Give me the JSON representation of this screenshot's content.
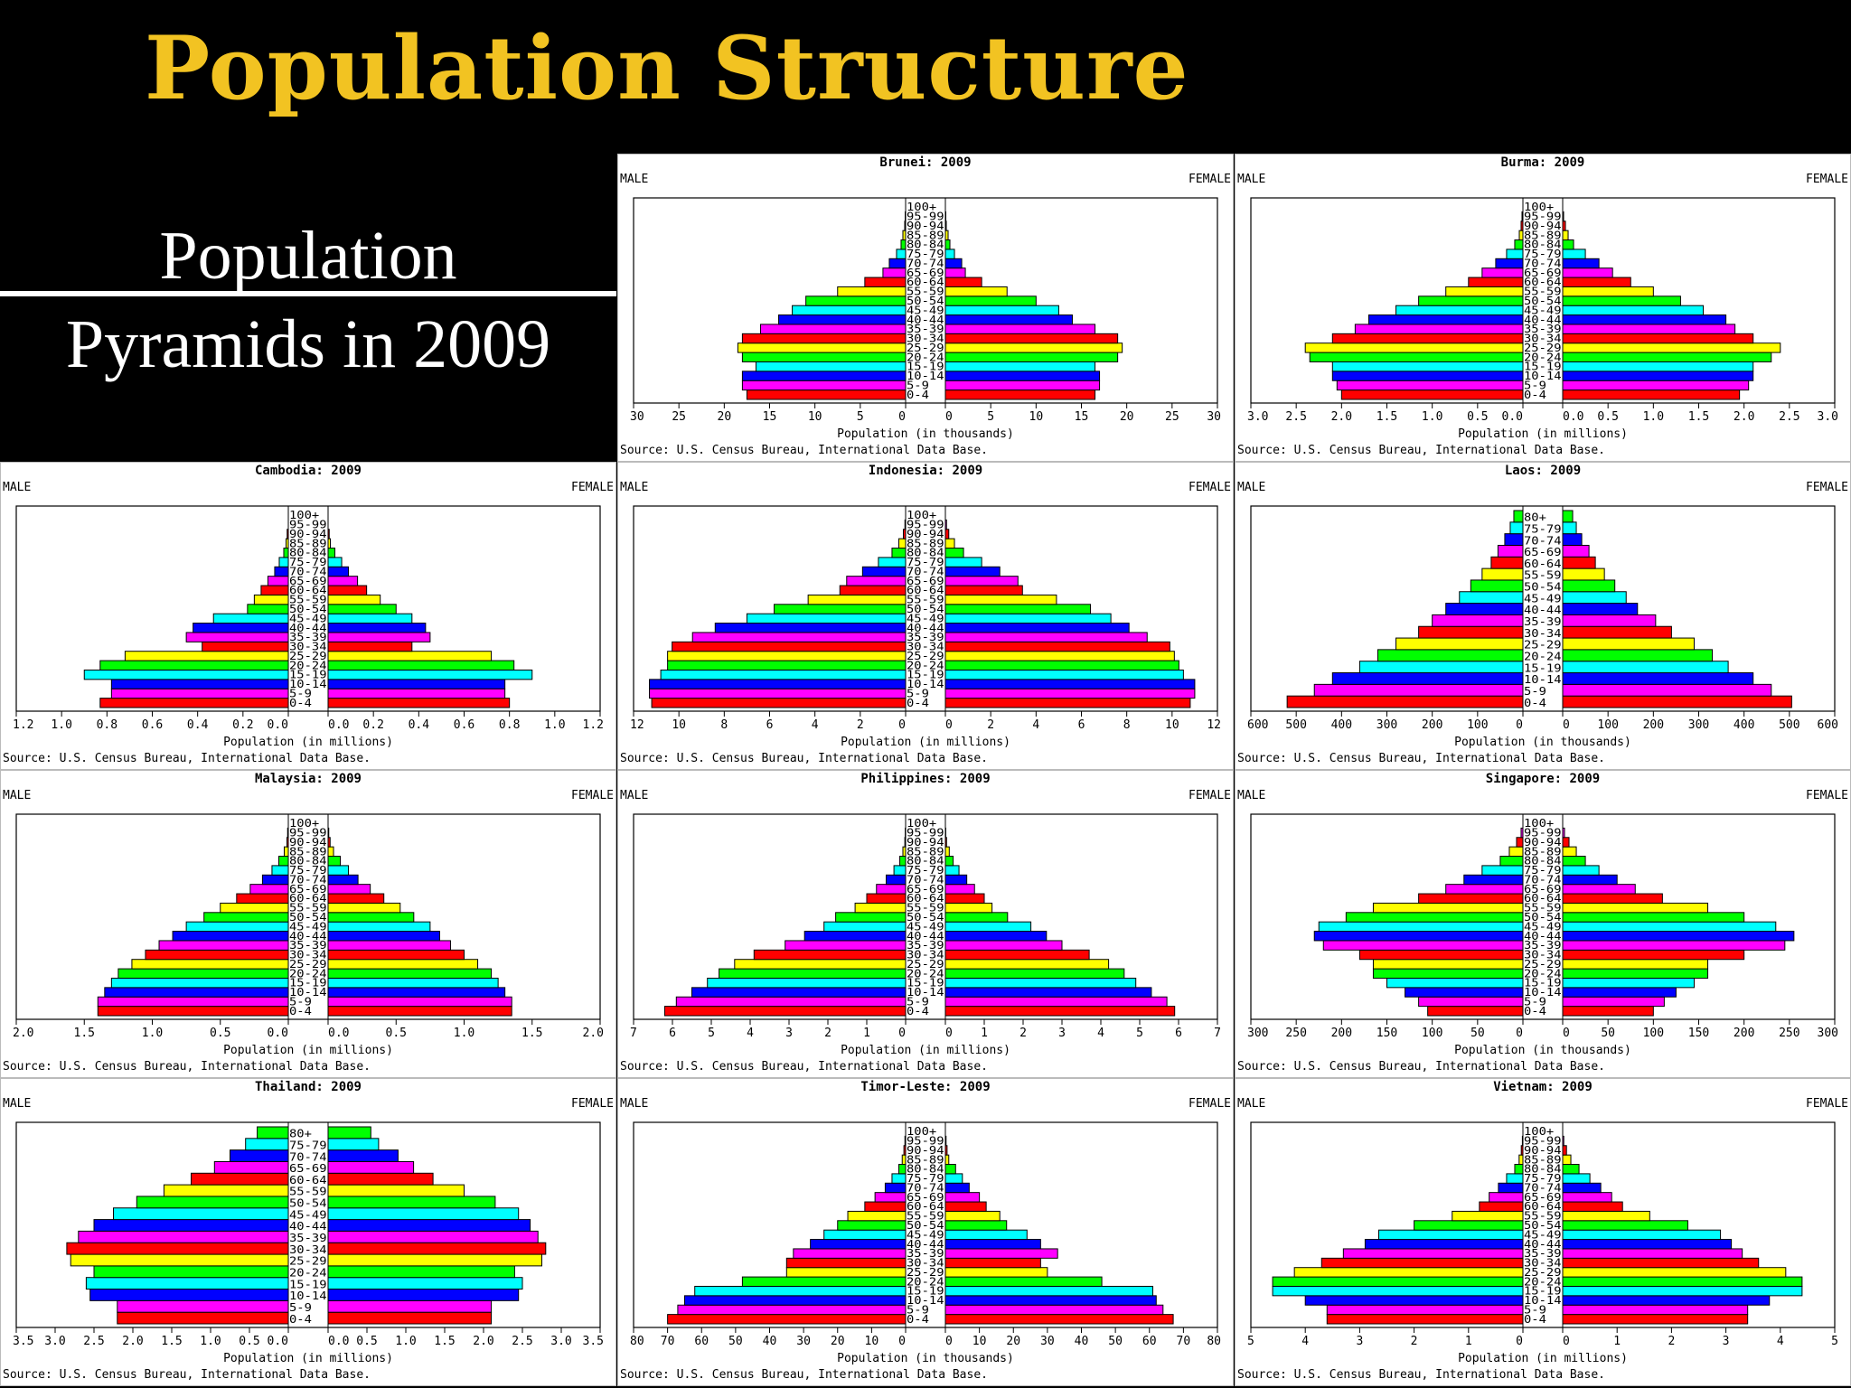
{
  "header": {
    "title": "Population Structure",
    "subtitle_line1": "Population",
    "subtitle_line2": "Pyramids in 2009"
  },
  "common": {
    "male_label": "MALE",
    "female_label": "FEMALE",
    "source": "Source: U.S. Census Bureau, International Data Base."
  },
  "colors": [
    "#ff0000",
    "#ff00ff",
    "#0000ff",
    "#00ffff",
    "#00ff00",
    "#ffff00"
  ],
  "chart_data": [
    {
      "type": "bar",
      "title": "Brunei: 2009",
      "xlabel": "Population (in thousands)",
      "xmax": 30,
      "ticks": [
        "30",
        "25",
        "20",
        "15",
        "10",
        "5",
        "0"
      ],
      "age_groups": [
        "0-4",
        "5-9",
        "10-14",
        "15-19",
        "20-24",
        "25-29",
        "30-34",
        "35-39",
        "40-44",
        "45-49",
        "50-54",
        "55-59",
        "60-64",
        "65-69",
        "70-74",
        "75-79",
        "80-84",
        "85-89",
        "90-94",
        "95-99",
        "100+"
      ],
      "male": [
        17.5,
        18,
        18,
        16.5,
        18,
        18.5,
        18,
        16,
        14,
        12.5,
        11,
        7.5,
        4.5,
        2.5,
        1.8,
        1.0,
        0.5,
        0.3,
        0.1,
        0.05,
        0
      ],
      "female": [
        16.5,
        17,
        17,
        16.5,
        19,
        19.5,
        19,
        16.5,
        14,
        12.5,
        10,
        6.8,
        4.0,
        2.2,
        1.8,
        1.0,
        0.5,
        0.3,
        0.1,
        0.05,
        0
      ]
    },
    {
      "type": "bar",
      "title": "Burma: 2009",
      "xlabel": "Population (in millions)",
      "xmax": 3.0,
      "ticks": [
        "3.0",
        "2.5",
        "2.0",
        "1.5",
        "1.0",
        "0.5",
        "0.0"
      ],
      "age_groups": [
        "0-4",
        "5-9",
        "10-14",
        "15-19",
        "20-24",
        "25-29",
        "30-34",
        "35-39",
        "40-44",
        "45-49",
        "50-54",
        "55-59",
        "60-64",
        "65-69",
        "70-74",
        "75-79",
        "80-84",
        "85-89",
        "90-94",
        "95-99",
        "100+"
      ],
      "male": [
        2.0,
        2.05,
        2.1,
        2.1,
        2.35,
        2.4,
        2.1,
        1.85,
        1.7,
        1.4,
        1.15,
        0.85,
        0.6,
        0.45,
        0.3,
        0.18,
        0.09,
        0.04,
        0.02,
        0.01,
        0
      ],
      "female": [
        1.95,
        2.05,
        2.1,
        2.1,
        2.3,
        2.4,
        2.1,
        1.9,
        1.8,
        1.55,
        1.3,
        1.0,
        0.75,
        0.55,
        0.4,
        0.25,
        0.12,
        0.06,
        0.03,
        0.01,
        0
      ]
    },
    {
      "type": "bar",
      "title": "Cambodia: 2009",
      "xlabel": "Population (in millions)",
      "xmax": 1.2,
      "ticks": [
        "1.2",
        "1.0",
        "0.8",
        "0.6",
        "0.4",
        "0.2",
        "0.0"
      ],
      "age_groups": [
        "0-4",
        "5-9",
        "10-14",
        "15-19",
        "20-24",
        "25-29",
        "30-34",
        "35-39",
        "40-44",
        "45-49",
        "50-54",
        "55-59",
        "60-64",
        "65-69",
        "70-74",
        "75-79",
        "80-84",
        "85-89",
        "90-94",
        "95-99",
        "100+"
      ],
      "male": [
        0.83,
        0.78,
        0.78,
        0.9,
        0.83,
        0.72,
        0.38,
        0.45,
        0.42,
        0.33,
        0.18,
        0.15,
        0.12,
        0.09,
        0.06,
        0.04,
        0.02,
        0.01,
        0.005,
        0,
        0
      ],
      "female": [
        0.8,
        0.78,
        0.78,
        0.9,
        0.82,
        0.72,
        0.37,
        0.45,
        0.43,
        0.37,
        0.3,
        0.23,
        0.17,
        0.13,
        0.09,
        0.06,
        0.03,
        0.01,
        0.005,
        0,
        0
      ]
    },
    {
      "type": "bar",
      "title": "Indonesia: 2009",
      "xlabel": "Population (in millions)",
      "xmax": 12,
      "ticks": [
        "12",
        "10",
        "8",
        "6",
        "4",
        "2",
        "0"
      ],
      "age_groups": [
        "0-4",
        "5-9",
        "10-14",
        "15-19",
        "20-24",
        "25-29",
        "30-34",
        "35-39",
        "40-44",
        "45-49",
        "50-54",
        "55-59",
        "60-64",
        "65-69",
        "70-74",
        "75-79",
        "80-84",
        "85-89",
        "90-94",
        "95-99",
        "100+"
      ],
      "male": [
        11.2,
        11.3,
        11.3,
        10.8,
        10.5,
        10.5,
        10.3,
        9.4,
        8.4,
        7.0,
        5.8,
        4.3,
        2.9,
        2.6,
        1.9,
        1.2,
        0.6,
        0.3,
        0.1,
        0.03,
        0
      ],
      "female": [
        10.8,
        11.0,
        11.0,
        10.5,
        10.3,
        10.1,
        9.9,
        8.9,
        8.1,
        7.3,
        6.4,
        4.9,
        3.4,
        3.2,
        2.4,
        1.6,
        0.8,
        0.4,
        0.15,
        0.05,
        0
      ]
    },
    {
      "type": "bar",
      "title": "Laos: 2009",
      "xlabel": "Population (in thousands)",
      "xmax": 600,
      "ticks": [
        "600",
        "500",
        "400",
        "300",
        "200",
        "100",
        "0"
      ],
      "age_groups": [
        "0-4",
        "5-9",
        "10-14",
        "15-19",
        "20-24",
        "25-29",
        "30-34",
        "35-39",
        "40-44",
        "45-49",
        "50-54",
        "55-59",
        "60-64",
        "65-69",
        "70-74",
        "75-79",
        "80+"
      ],
      "male": [
        520,
        460,
        420,
        360,
        320,
        280,
        230,
        200,
        170,
        140,
        115,
        90,
        70,
        55,
        40,
        28,
        20
      ],
      "female": [
        505,
        460,
        420,
        365,
        330,
        290,
        240,
        205,
        165,
        140,
        115,
        92,
        72,
        58,
        42,
        30,
        22
      ]
    },
    {
      "type": "bar",
      "title": "Malaysia: 2009",
      "xlabel": "Population (in millions)",
      "xmax": 2.0,
      "ticks": [
        "2.0",
        "1.5",
        "1.0",
        "0.5",
        "0.0"
      ],
      "age_groups": [
        "0-4",
        "5-9",
        "10-14",
        "15-19",
        "20-24",
        "25-29",
        "30-34",
        "35-39",
        "40-44",
        "45-49",
        "50-54",
        "55-59",
        "60-64",
        "65-69",
        "70-74",
        "75-79",
        "80-84",
        "85-89",
        "90-94",
        "95-99",
        "100+"
      ],
      "male": [
        1.4,
        1.4,
        1.35,
        1.3,
        1.25,
        1.15,
        1.05,
        0.95,
        0.85,
        0.75,
        0.62,
        0.5,
        0.38,
        0.28,
        0.19,
        0.12,
        0.07,
        0.03,
        0.01,
        0.005,
        0
      ],
      "female": [
        1.35,
        1.35,
        1.3,
        1.25,
        1.2,
        1.1,
        1.0,
        0.9,
        0.82,
        0.75,
        0.63,
        0.53,
        0.41,
        0.31,
        0.22,
        0.15,
        0.09,
        0.04,
        0.015,
        0.005,
        0
      ]
    },
    {
      "type": "bar",
      "title": "Philippines: 2009",
      "xlabel": "Population (in millions)",
      "xmax": 7,
      "ticks": [
        "7",
        "6",
        "5",
        "4",
        "3",
        "2",
        "1",
        "0"
      ],
      "age_groups": [
        "0-4",
        "5-9",
        "10-14",
        "15-19",
        "20-24",
        "25-29",
        "30-34",
        "35-39",
        "40-44",
        "45-49",
        "50-54",
        "55-59",
        "60-64",
        "65-69",
        "70-74",
        "75-79",
        "80-84",
        "85-89",
        "90-94",
        "95-99",
        "100+"
      ],
      "male": [
        6.2,
        5.9,
        5.5,
        5.1,
        4.8,
        4.4,
        3.9,
        3.1,
        2.6,
        2.1,
        1.8,
        1.3,
        1.0,
        0.75,
        0.5,
        0.3,
        0.15,
        0.07,
        0.02,
        0.01,
        0
      ],
      "female": [
        5.9,
        5.7,
        5.3,
        4.9,
        4.6,
        4.2,
        3.7,
        3.0,
        2.6,
        2.2,
        1.6,
        1.2,
        1.0,
        0.75,
        0.55,
        0.35,
        0.2,
        0.1,
        0.03,
        0.01,
        0
      ]
    },
    {
      "type": "bar",
      "title": "Singapore: 2009",
      "xlabel": "Population (in thousands)",
      "xmax": 300,
      "ticks": [
        "300",
        "250",
        "200",
        "150",
        "100",
        "50",
        "0"
      ],
      "age_groups": [
        "0-4",
        "5-9",
        "10-14",
        "15-19",
        "20-24",
        "25-29",
        "30-34",
        "35-39",
        "40-44",
        "45-49",
        "50-54",
        "55-59",
        "60-64",
        "65-69",
        "70-74",
        "75-79",
        "80-84",
        "85-89",
        "90-94",
        "95-99",
        "100+"
      ],
      "male": [
        105,
        115,
        130,
        150,
        165,
        165,
        180,
        220,
        230,
        225,
        195,
        165,
        115,
        85,
        65,
        45,
        25,
        15,
        7,
        2,
        0
      ],
      "female": [
        100,
        112,
        125,
        145,
        160,
        160,
        200,
        245,
        255,
        235,
        200,
        160,
        110,
        80,
        60,
        40,
        25,
        15,
        7,
        2,
        0
      ]
    },
    {
      "type": "bar",
      "title": "Thailand: 2009",
      "xlabel": "Population (in millions)",
      "xmax": 3.5,
      "ticks": [
        "3.5",
        "3.0",
        "2.5",
        "2.0",
        "1.5",
        "1.0",
        "0.5",
        "0.0"
      ],
      "age_groups": [
        "0-4",
        "5-9",
        "10-14",
        "15-19",
        "20-24",
        "25-29",
        "30-34",
        "35-39",
        "40-44",
        "45-49",
        "50-54",
        "55-59",
        "60-64",
        "65-69",
        "70-74",
        "75-79",
        "80+"
      ],
      "male": [
        2.2,
        2.2,
        2.55,
        2.6,
        2.5,
        2.8,
        2.85,
        2.7,
        2.5,
        2.25,
        1.95,
        1.6,
        1.25,
        0.95,
        0.75,
        0.55,
        0.4
      ],
      "female": [
        2.1,
        2.1,
        2.45,
        2.5,
        2.4,
        2.75,
        2.8,
        2.7,
        2.6,
        2.45,
        2.15,
        1.75,
        1.35,
        1.1,
        0.9,
        0.65,
        0.55
      ]
    },
    {
      "type": "bar",
      "title": "Timor-Leste: 2009",
      "xlabel": "Population (in thousands)",
      "xmax": 80,
      "ticks": [
        "80",
        "70",
        "60",
        "50",
        "40",
        "30",
        "20",
        "10",
        "0"
      ],
      "age_groups": [
        "0-4",
        "5-9",
        "10-14",
        "15-19",
        "20-24",
        "25-29",
        "30-34",
        "35-39",
        "40-44",
        "45-49",
        "50-54",
        "55-59",
        "60-64",
        "65-69",
        "70-74",
        "75-79",
        "80-84",
        "85-89",
        "90-94",
        "95-99",
        "100+"
      ],
      "male": [
        70,
        67,
        65,
        62,
        48,
        35,
        35,
        33,
        28,
        24,
        20,
        17,
        12,
        9,
        6,
        4,
        2,
        1,
        0.5,
        0.2,
        0
      ],
      "female": [
        67,
        64,
        62,
        61,
        46,
        30,
        28,
        33,
        28,
        24,
        18,
        16,
        12,
        10,
        7,
        5,
        3,
        1,
        0.5,
        0.2,
        0
      ]
    },
    {
      "type": "bar",
      "title": "Vietnam: 2009",
      "xlabel": "Population (in millions)",
      "xmax": 5,
      "ticks": [
        "5",
        "4",
        "3",
        "2",
        "1",
        "0"
      ],
      "age_groups": [
        "0-4",
        "5-9",
        "10-14",
        "15-19",
        "20-24",
        "25-29",
        "30-34",
        "35-39",
        "40-44",
        "45-49",
        "50-54",
        "55-59",
        "60-64",
        "65-69",
        "70-74",
        "75-79",
        "80-84",
        "85-89",
        "90-94",
        "95-99",
        "100+"
      ],
      "male": [
        3.6,
        3.6,
        4.0,
        4.6,
        4.6,
        4.2,
        3.7,
        3.3,
        2.9,
        2.65,
        2.0,
        1.3,
        0.8,
        0.62,
        0.45,
        0.3,
        0.15,
        0.07,
        0.03,
        0.01,
        0
      ],
      "female": [
        3.4,
        3.4,
        3.8,
        4.4,
        4.4,
        4.1,
        3.6,
        3.3,
        3.1,
        2.9,
        2.3,
        1.6,
        1.1,
        0.9,
        0.7,
        0.5,
        0.3,
        0.15,
        0.07,
        0.02,
        0
      ]
    }
  ]
}
